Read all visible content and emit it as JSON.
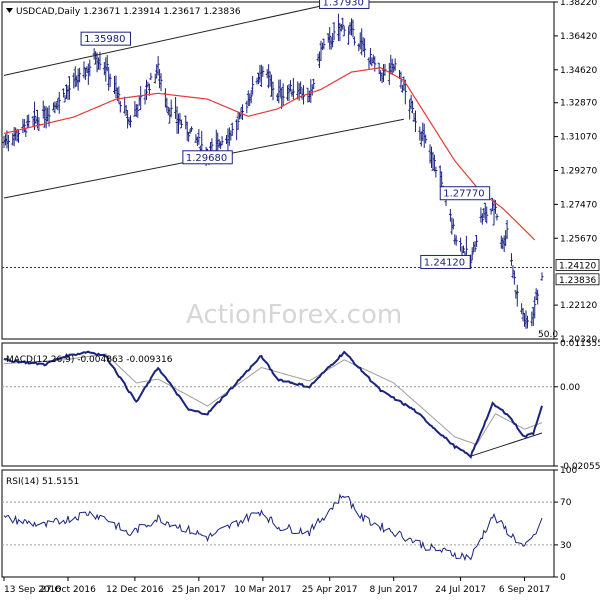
{
  "chart_data": [
    {
      "type": "bar",
      "name": "price",
      "header": "USDCAD,Daily  1.23671 1.23914 1.23617 1.23836",
      "ylim": [
        1.2032,
        1.3822
      ],
      "y_ticks": [
        "1.38220",
        "1.36420",
        "1.34620",
        "1.32870",
        "1.31070",
        "1.29270",
        "1.27470",
        "1.25670",
        "1.22120",
        "1.20320"
      ],
      "y_tick_values": [
        1.3822,
        1.3642,
        1.3462,
        1.3287,
        1.3107,
        1.2927,
        1.2747,
        1.2567,
        1.2212,
        1.2032
      ],
      "last_price": "1.23836",
      "last_price_value": 1.23836,
      "level_line": "1.24120",
      "level_value": 1.2412,
      "annotations": [
        {
          "text": "1.35980",
          "date": "2016-11-22",
          "value": 1.3598
        },
        {
          "text": "1.29680",
          "date": "2017-01-31",
          "value": 1.2968
        },
        {
          "text": "1.37930",
          "date": "2017-05-05",
          "value": 1.3793
        },
        {
          "text": "1.27770",
          "date": "2017-07-27",
          "value": 1.2777
        },
        {
          "text": "1.24120",
          "date": "2017-08-01",
          "value": 1.2412
        }
      ],
      "fifty_label": "50.0",
      "channel_upper": [
        {
          "date": "2016-09-13",
          "value": 1.3432
        },
        {
          "date": "2017-05-17",
          "value": 1.3848
        }
      ],
      "channel_lower": [
        {
          "date": "2016-09-13",
          "value": 1.2781
        },
        {
          "date": "2017-06-15",
          "value": 1.3199
        }
      ],
      "price_key": [
        {
          "date": "2016-09-13",
          "value": 1.3082
        },
        {
          "date": "2016-10-11",
          "value": 1.3221
        },
        {
          "date": "2016-10-25",
          "value": 1.3335
        },
        {
          "date": "2016-11-10",
          "value": 1.3468
        },
        {
          "date": "2016-11-15",
          "value": 1.3538
        },
        {
          "date": "2016-11-22",
          "value": 1.3481
        },
        {
          "date": "2016-12-08",
          "value": 1.3186
        },
        {
          "date": "2016-12-28",
          "value": 1.3468
        },
        {
          "date": "2017-01-04",
          "value": 1.3258
        },
        {
          "date": "2017-01-31",
          "value": 1.3023
        },
        {
          "date": "2017-02-20",
          "value": 1.3156
        },
        {
          "date": "2017-03-09",
          "value": 1.3471
        },
        {
          "date": "2017-03-20",
          "value": 1.3331
        },
        {
          "date": "2017-04-04",
          "value": 1.3366
        },
        {
          "date": "2017-04-11",
          "value": 1.3296
        },
        {
          "date": "2017-04-19",
          "value": 1.3568
        },
        {
          "date": "2017-05-05",
          "value": 1.3698
        },
        {
          "date": "2017-05-17",
          "value": 1.3593
        },
        {
          "date": "2017-05-30",
          "value": 1.3433
        },
        {
          "date": "2017-06-09",
          "value": 1.3481
        },
        {
          "date": "2017-06-22",
          "value": 1.3221
        },
        {
          "date": "2017-07-10",
          "value": 1.2888
        },
        {
          "date": "2017-07-20",
          "value": 1.2584
        },
        {
          "date": "2017-07-31",
          "value": 1.2441
        },
        {
          "date": "2017-08-07",
          "value": 1.2671
        },
        {
          "date": "2017-08-17",
          "value": 1.2736
        },
        {
          "date": "2017-08-22",
          "value": 1.2528
        },
        {
          "date": "2017-08-25",
          "value": 1.2619
        },
        {
          "date": "2017-08-31",
          "value": 1.2294
        },
        {
          "date": "2017-09-07",
          "value": 1.2112
        },
        {
          "date": "2017-09-11",
          "value": 1.2151
        },
        {
          "date": "2017-09-18",
          "value": 1.2383
        }
      ],
      "ma_key": [
        {
          "date": "2016-09-13",
          "value": 1.3124
        },
        {
          "date": "2016-10-31",
          "value": 1.3211
        },
        {
          "date": "2016-11-29",
          "value": 1.3306
        },
        {
          "date": "2016-12-28",
          "value": 1.3337
        },
        {
          "date": "2017-01-31",
          "value": 1.3306
        },
        {
          "date": "2017-02-28",
          "value": 1.3215
        },
        {
          "date": "2017-03-20",
          "value": 1.3254
        },
        {
          "date": "2017-04-04",
          "value": 1.3318
        },
        {
          "date": "2017-04-19",
          "value": 1.3358
        },
        {
          "date": "2017-05-10",
          "value": 1.345
        },
        {
          "date": "2017-05-30",
          "value": 1.3473
        },
        {
          "date": "2017-06-15",
          "value": 1.3406
        },
        {
          "date": "2017-07-03",
          "value": 1.3186
        },
        {
          "date": "2017-07-20",
          "value": 1.2979
        },
        {
          "date": "2017-08-07",
          "value": 1.2812
        },
        {
          "date": "2017-08-22",
          "value": 1.2726
        },
        {
          "date": "2017-09-05",
          "value": 1.262
        },
        {
          "date": "2017-09-13",
          "value": 1.2558
        }
      ],
      "colors": {
        "bars": "#1a237e",
        "ma": "#e53935",
        "channel": "#222222",
        "level": "#333333"
      }
    },
    {
      "type": "line",
      "name": "macd",
      "header": "MACD(12,26,9) -0.004863 -0.009316",
      "ylim": [
        -0.020551,
        0.011355
      ],
      "y_ticks": [
        "0.011355",
        "0.00",
        "-0.020551"
      ],
      "y_tick_values": [
        0.011355,
        0.0,
        -0.020551
      ],
      "macd_key": [
        {
          "date": "2016-09-13",
          "value": 0.007
        },
        {
          "date": "2016-10-11",
          "value": 0.0058
        },
        {
          "date": "2016-10-25",
          "value": 0.0079
        },
        {
          "date": "2016-11-10",
          "value": 0.0091
        },
        {
          "date": "2016-11-22",
          "value": 0.008
        },
        {
          "date": "2016-12-13",
          "value": -0.004
        },
        {
          "date": "2016-12-28",
          "value": 0.005
        },
        {
          "date": "2017-01-18",
          "value": -0.006
        },
        {
          "date": "2017-01-31",
          "value": -0.007
        },
        {
          "date": "2017-03-09",
          "value": 0.008
        },
        {
          "date": "2017-03-20",
          "value": 0.002
        },
        {
          "date": "2017-04-11",
          "value": 0.0
        },
        {
          "date": "2017-05-05",
          "value": 0.009
        },
        {
          "date": "2017-05-30",
          "value": -0.001
        },
        {
          "date": "2017-06-22",
          "value": -0.006
        },
        {
          "date": "2017-07-20",
          "value": -0.0155
        },
        {
          "date": "2017-07-31",
          "value": -0.018
        },
        {
          "date": "2017-08-09",
          "value": -0.01
        },
        {
          "date": "2017-08-15",
          "value": -0.0045
        },
        {
          "date": "2017-08-25",
          "value": -0.007
        },
        {
          "date": "2017-09-06",
          "value": -0.013
        },
        {
          "date": "2017-09-12",
          "value": -0.012
        },
        {
          "date": "2017-09-18",
          "value": -0.0048
        }
      ],
      "signal_key": [
        {
          "date": "2016-09-13",
          "value": 0.006
        },
        {
          "date": "2016-10-25",
          "value": 0.007
        },
        {
          "date": "2016-11-22",
          "value": 0.0085
        },
        {
          "date": "2016-12-13",
          "value": 0.001
        },
        {
          "date": "2016-12-28",
          "value": 0.002
        },
        {
          "date": "2017-01-31",
          "value": -0.005
        },
        {
          "date": "2017-03-09",
          "value": 0.005
        },
        {
          "date": "2017-04-11",
          "value": 0.0015
        },
        {
          "date": "2017-05-05",
          "value": 0.007
        },
        {
          "date": "2017-06-08",
          "value": 0.001
        },
        {
          "date": "2017-07-20",
          "value": -0.013
        },
        {
          "date": "2017-08-04",
          "value": -0.015
        },
        {
          "date": "2017-08-17",
          "value": -0.007
        },
        {
          "date": "2017-09-06",
          "value": -0.011
        },
        {
          "date": "2017-09-18",
          "value": -0.0093
        }
      ],
      "trend_line": [
        {
          "date": "2017-07-31",
          "value": -0.018
        },
        {
          "date": "2017-09-18",
          "value": -0.012
        }
      ],
      "colors": {
        "macd": "#1a237e",
        "signal": "#9e9e9e",
        "trend": "#222222"
      }
    },
    {
      "type": "line",
      "name": "rsi",
      "header": "RSI(14) 51.5151",
      "ylim": [
        0,
        100
      ],
      "y_ticks": [
        "100",
        "70",
        "30",
        "0"
      ],
      "y_tick_values": [
        100,
        70,
        30,
        0
      ],
      "rsi_key": [
        {
          "date": "2016-09-13",
          "value": 55
        },
        {
          "date": "2016-10-11",
          "value": 48
        },
        {
          "date": "2016-11-10",
          "value": 60
        },
        {
          "date": "2016-11-22",
          "value": 55
        },
        {
          "date": "2016-12-08",
          "value": 40
        },
        {
          "date": "2016-12-28",
          "value": 55
        },
        {
          "date": "2017-01-31",
          "value": 37
        },
        {
          "date": "2017-03-09",
          "value": 62
        },
        {
          "date": "2017-03-20",
          "value": 47
        },
        {
          "date": "2017-04-11",
          "value": 42
        },
        {
          "date": "2017-05-05",
          "value": 78
        },
        {
          "date": "2017-05-17",
          "value": 55
        },
        {
          "date": "2017-06-15",
          "value": 38
        },
        {
          "date": "2017-07-03",
          "value": 27
        },
        {
          "date": "2017-07-31",
          "value": 18
        },
        {
          "date": "2017-08-15",
          "value": 57
        },
        {
          "date": "2017-09-06",
          "value": 27
        },
        {
          "date": "2017-09-12",
          "value": 37
        },
        {
          "date": "2017-09-18",
          "value": 51.5
        }
      ],
      "colors": {
        "rsi": "#1a237e",
        "levels": "#999999"
      }
    }
  ],
  "x_axis": {
    "labels": [
      "13 Sep 2016",
      "27 Oct 2016",
      "12 Dec 2016",
      "25 Jan 2017",
      "10 Mar 2017",
      "25 Apr 2017",
      "8 Jun 2017",
      "24 Jul 2017",
      "6 Sep 2017"
    ],
    "dates": [
      "2016-09-13",
      "2016-10-27",
      "2016-12-12",
      "2017-01-25",
      "2017-03-10",
      "2017-04-25",
      "2017-06-08",
      "2017-07-24",
      "2017-09-06"
    ],
    "range": [
      "2016-09-13",
      "2017-09-18"
    ]
  },
  "watermark": "ActionForex.com",
  "header_icon": "triangle-down-icon"
}
